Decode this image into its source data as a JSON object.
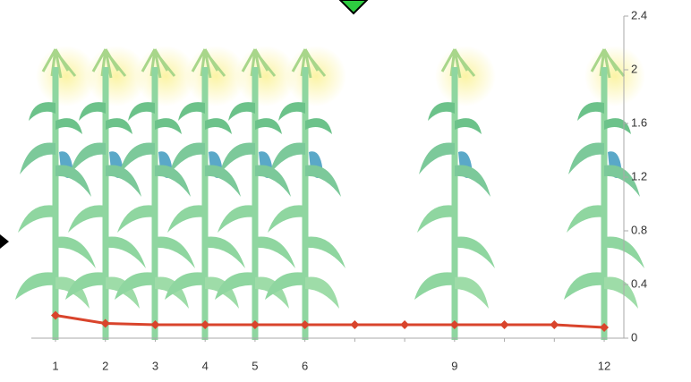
{
  "chart_data": {
    "type": "line",
    "categories": [
      "1",
      "2",
      "3",
      "4",
      "5",
      "6",
      null,
      null,
      "9",
      null,
      null,
      "12"
    ],
    "series": [
      {
        "color": "#d9442c",
        "values": [
          0.17,
          0.11,
          0.1,
          0.1,
          0.1,
          0.1,
          0.1,
          0.1,
          0.1,
          0.1,
          0.1,
          0.08
        ]
      }
    ],
    "ylim": [
      0,
      2.4
    ],
    "yticks": [
      0,
      0.4,
      0.8,
      1.2,
      1.6,
      2,
      2.4
    ],
    "y_axis_side": "right"
  }
}
